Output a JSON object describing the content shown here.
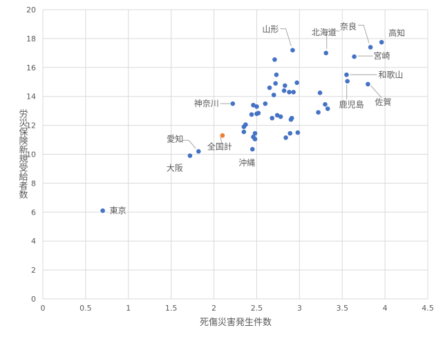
{
  "chart_data": {
    "type": "scatter",
    "xlabel": "死傷災害発生件数",
    "ylabel": "労災保険新規受給者数",
    "xlim": [
      0,
      4.5
    ],
    "ylim": [
      0,
      20
    ],
    "x_ticks": [
      "0",
      "0.5",
      "1",
      "1.5",
      "2",
      "2.5",
      "3",
      "3.5",
      "4",
      "4.5"
    ],
    "y_ticks": [
      "0",
      "2",
      "4",
      "6",
      "8",
      "10",
      "12",
      "14",
      "16",
      "18",
      "20"
    ],
    "grid": "vertical and horizontal major gridlines",
    "colors": {
      "points": "#4472c4",
      "highlight": "#ed7d31",
      "grid": "#d9d9d9"
    },
    "series": [
      {
        "color": "#4472c4",
        "points": [
          [
            0.7,
            6.1
          ],
          [
            1.72,
            9.9
          ],
          [
            1.82,
            10.2
          ],
          [
            2.22,
            13.5
          ],
          [
            2.35,
            11.9
          ],
          [
            2.35,
            11.55
          ],
          [
            2.37,
            12.05
          ],
          [
            2.44,
            12.75
          ],
          [
            2.45,
            10.35
          ],
          [
            2.46,
            11.2
          ],
          [
            2.46,
            13.4
          ],
          [
            2.48,
            11.45
          ],
          [
            2.48,
            11.05
          ],
          [
            2.5,
            13.3
          ],
          [
            2.5,
            12.8
          ],
          [
            2.52,
            12.85
          ],
          [
            2.6,
            13.5
          ],
          [
            2.65,
            14.6
          ],
          [
            2.68,
            12.5
          ],
          [
            2.7,
            14.1
          ],
          [
            2.71,
            16.55
          ],
          [
            2.72,
            14.9
          ],
          [
            2.73,
            15.5
          ],
          [
            2.74,
            12.7
          ],
          [
            2.78,
            12.6
          ],
          [
            2.82,
            14.4
          ],
          [
            2.83,
            14.75
          ],
          [
            2.84,
            11.15
          ],
          [
            2.88,
            14.3
          ],
          [
            2.89,
            11.45
          ],
          [
            2.9,
            12.4
          ],
          [
            2.91,
            12.5
          ],
          [
            2.92,
            17.2
          ],
          [
            2.93,
            14.3
          ],
          [
            2.97,
            14.95
          ],
          [
            2.98,
            11.5
          ],
          [
            3.22,
            12.9
          ],
          [
            3.24,
            14.25
          ],
          [
            3.3,
            13.45
          ],
          [
            3.31,
            17.0
          ],
          [
            3.33,
            13.15
          ],
          [
            3.55,
            15.5
          ],
          [
            3.56,
            15.05
          ],
          [
            3.64,
            16.75
          ],
          [
            3.8,
            14.85
          ],
          [
            3.83,
            17.4
          ],
          [
            3.96,
            17.75
          ]
        ]
      },
      {
        "color": "#ed7d31",
        "points": [
          [
            2.1,
            11.3
          ]
        ]
      }
    ],
    "annotations": [
      {
        "text": "東京",
        "x": 0.7,
        "y": 6.1
      },
      {
        "text": "大阪",
        "x": 1.72,
        "y": 9.9
      },
      {
        "text": "愛知",
        "x": 1.82,
        "y": 10.2
      },
      {
        "text": "全国計",
        "x": 2.1,
        "y": 11.3
      },
      {
        "text": "神奈川",
        "x": 2.22,
        "y": 13.5
      },
      {
        "text": "沖縄",
        "x": 2.45,
        "y": 10.35
      },
      {
        "text": "山形",
        "x": 2.92,
        "y": 17.2
      },
      {
        "text": "北海道",
        "x": 3.31,
        "y": 17.0
      },
      {
        "text": "奈良",
        "x": 3.83,
        "y": 17.4
      },
      {
        "text": "高知",
        "x": 3.96,
        "y": 17.75
      },
      {
        "text": "宮崎",
        "x": 3.64,
        "y": 16.75
      },
      {
        "text": "和歌山",
        "x": 3.55,
        "y": 15.5
      },
      {
        "text": "鹿児島",
        "x": 3.56,
        "y": 15.05
      },
      {
        "text": "佐賀",
        "x": 3.8,
        "y": 14.85
      }
    ]
  }
}
